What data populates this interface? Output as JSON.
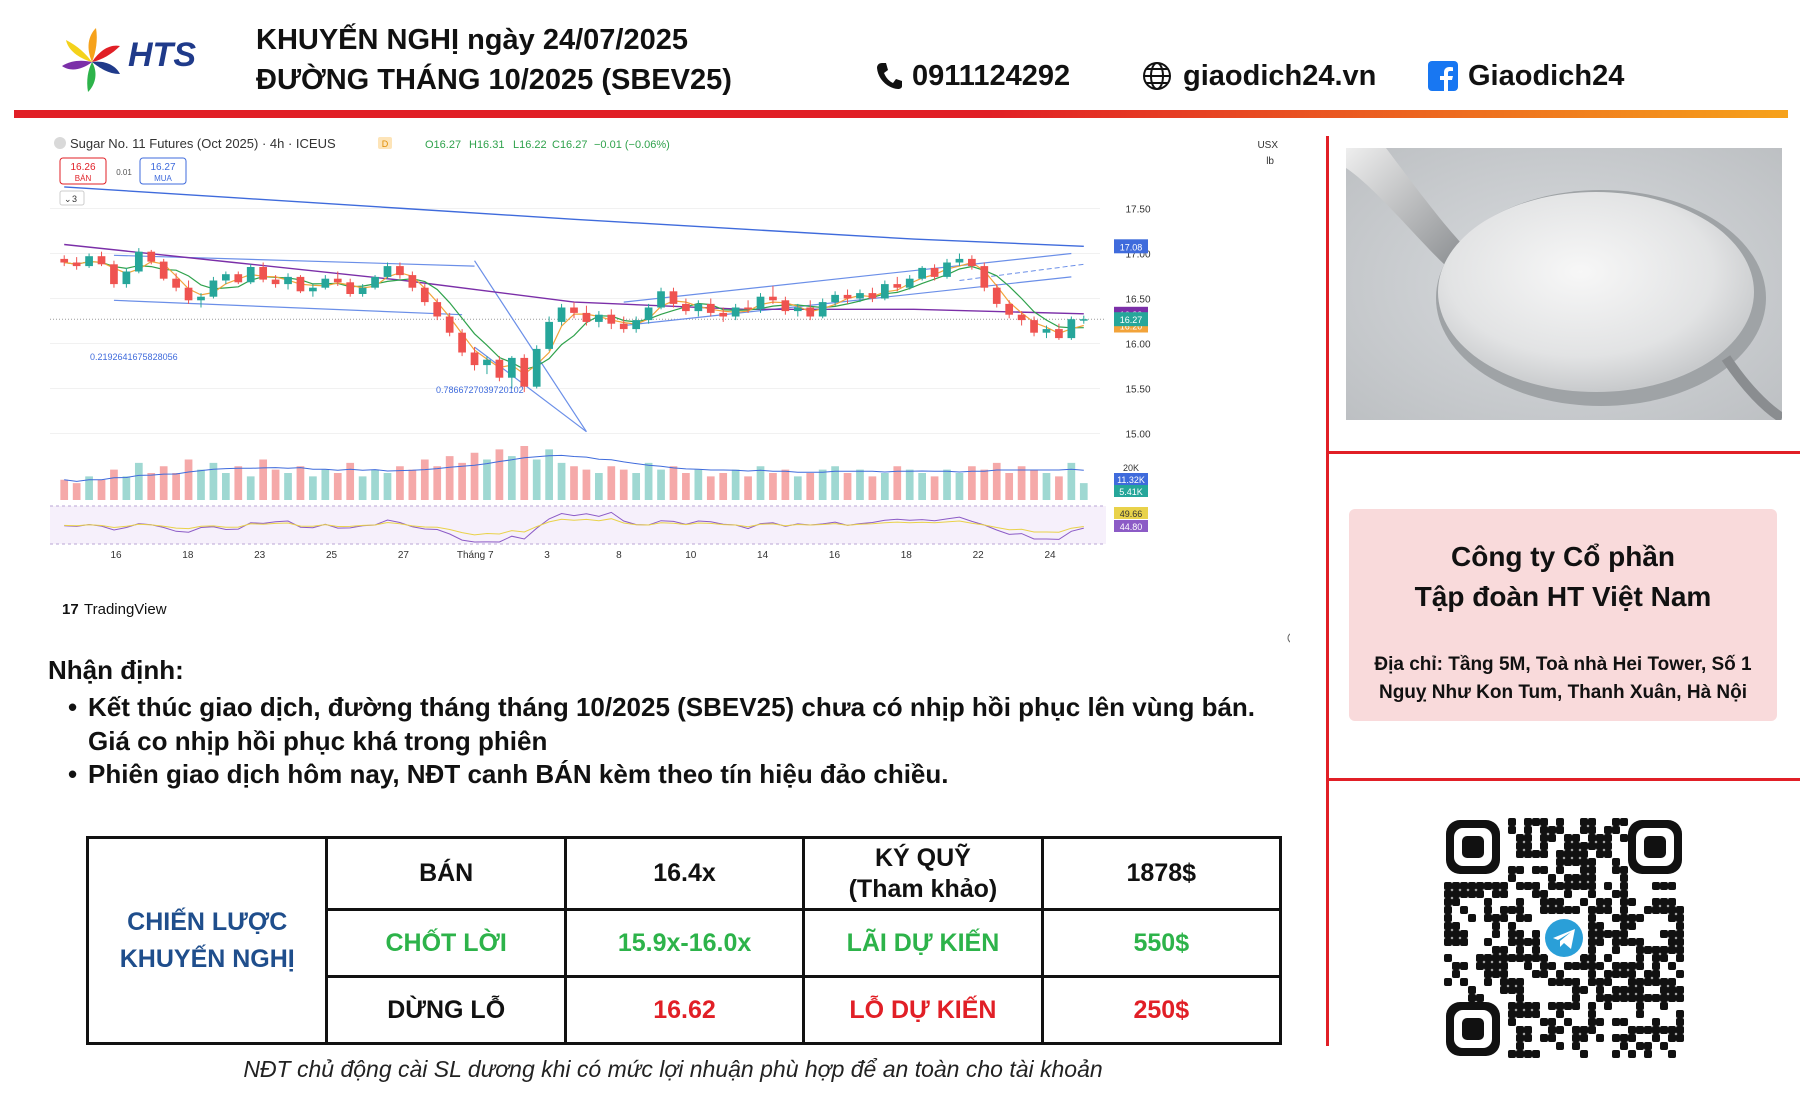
{
  "header": {
    "logo_text": "HTS",
    "title_line1": "KHUYẾN NGHỊ ngày 24/07/2025",
    "title_line2": "ĐƯỜNG THÁNG 10/2025 (SBEV25)",
    "phone": "0911124292",
    "website": "giaodich24.vn",
    "facebook": "Giaodich24",
    "colors": {
      "accent_red": "#e11f26",
      "accent_orange": "#f6a21b",
      "brand_blue": "#1f3a8a"
    }
  },
  "chart_data": {
    "type": "candlestick",
    "title": "Sugar No. 11 Futures (Oct 2025) · 4h · ICEUS",
    "ohlc_summary": {
      "open": "O16.27",
      "high": "H16.31",
      "low": "L16.22",
      "close": "C16.27",
      "change": "−0.01 (−0.06%)"
    },
    "sell_price": "16.26",
    "sell_label": "BÁN",
    "spread": "0.01",
    "buy_price": "16.27",
    "buy_label": "MUA",
    "indicator_count": "3",
    "currency": "USX",
    "unit": "lb",
    "d_badge": "D",
    "y_ticks": [
      "17.50",
      "17.00",
      "16.50",
      "16.00",
      "15.50",
      "15.00"
    ],
    "ylim": [
      14.95,
      17.95
    ],
    "x_ticks": [
      "16",
      "18",
      "23",
      "25",
      "27",
      "Tháng 7",
      "3",
      "8",
      "10",
      "14",
      "16",
      "18",
      "22",
      "24"
    ],
    "price_labels": {
      "ma_long": "17.08",
      "last": "16.27",
      "ma_mid": "16.33",
      "ma_short": "16.20"
    },
    "fib_label_1": "0.2192641675828056",
    "fib_label_2": "0.7866727039720102",
    "volume_labels": {
      "max": "20K",
      "ma": "11.32K",
      "last": "5.41K"
    },
    "rsi_labels": {
      "upper": "49.66",
      "lower": "44.80"
    },
    "watermark": "TradingView",
    "candles": [
      [
        16.94,
        16.98,
        16.86,
        16.9
      ],
      [
        16.9,
        16.96,
        16.82,
        16.86
      ],
      [
        16.86,
        17.0,
        16.84,
        16.97
      ],
      [
        16.97,
        17.02,
        16.86,
        16.88
      ],
      [
        16.88,
        16.92,
        16.62,
        16.66
      ],
      [
        16.66,
        16.84,
        16.62,
        16.8
      ],
      [
        16.8,
        17.06,
        16.78,
        17.02
      ],
      [
        17.02,
        17.04,
        16.88,
        16.91
      ],
      [
        16.91,
        16.94,
        16.7,
        16.72
      ],
      [
        16.72,
        16.78,
        16.58,
        16.62
      ],
      [
        16.62,
        16.7,
        16.44,
        16.48
      ],
      [
        16.48,
        16.56,
        16.4,
        16.52
      ],
      [
        16.52,
        16.74,
        16.5,
        16.7
      ],
      [
        16.7,
        16.8,
        16.66,
        16.77
      ],
      [
        16.77,
        16.8,
        16.66,
        16.68
      ],
      [
        16.68,
        16.88,
        16.66,
        16.85
      ],
      [
        16.85,
        16.9,
        16.68,
        16.71
      ],
      [
        16.71,
        16.76,
        16.62,
        16.66
      ],
      [
        16.66,
        16.78,
        16.6,
        16.74
      ],
      [
        16.74,
        16.76,
        16.56,
        16.58
      ],
      [
        16.58,
        16.66,
        16.52,
        16.62
      ],
      [
        16.62,
        16.76,
        16.6,
        16.72
      ],
      [
        16.72,
        16.8,
        16.64,
        16.68
      ],
      [
        16.68,
        16.72,
        16.52,
        16.55
      ],
      [
        16.55,
        16.66,
        16.52,
        16.62
      ],
      [
        16.62,
        16.76,
        16.6,
        16.74
      ],
      [
        16.74,
        16.9,
        16.72,
        16.86
      ],
      [
        16.86,
        16.9,
        16.72,
        16.76
      ],
      [
        16.76,
        16.8,
        16.58,
        16.62
      ],
      [
        16.62,
        16.66,
        16.42,
        16.46
      ],
      [
        16.46,
        16.5,
        16.26,
        16.3
      ],
      [
        16.3,
        16.34,
        16.08,
        16.12
      ],
      [
        16.12,
        16.16,
        15.86,
        15.9
      ],
      [
        15.9,
        15.96,
        15.7,
        15.76
      ],
      [
        15.76,
        15.86,
        15.66,
        15.82
      ],
      [
        15.82,
        15.86,
        15.58,
        15.62
      ],
      [
        15.62,
        15.86,
        15.5,
        15.84
      ],
      [
        15.84,
        15.88,
        15.46,
        15.52
      ],
      [
        15.52,
        15.98,
        15.5,
        15.94
      ],
      [
        15.94,
        16.3,
        15.92,
        16.24
      ],
      [
        16.24,
        16.44,
        16.2,
        16.4
      ],
      [
        16.4,
        16.46,
        16.28,
        16.34
      ],
      [
        16.34,
        16.42,
        16.2,
        16.24
      ],
      [
        16.24,
        16.36,
        16.18,
        16.32
      ],
      [
        16.32,
        16.38,
        16.16,
        16.22
      ],
      [
        16.22,
        16.3,
        16.12,
        16.16
      ],
      [
        16.16,
        16.3,
        16.12,
        16.26
      ],
      [
        16.26,
        16.44,
        16.22,
        16.4
      ],
      [
        16.4,
        16.62,
        16.38,
        16.58
      ],
      [
        16.58,
        16.62,
        16.4,
        16.44
      ],
      [
        16.44,
        16.5,
        16.32,
        16.36
      ],
      [
        16.36,
        16.48,
        16.3,
        16.44
      ],
      [
        16.44,
        16.5,
        16.3,
        16.34
      ],
      [
        16.34,
        16.4,
        16.24,
        16.3
      ],
      [
        16.3,
        16.44,
        16.26,
        16.4
      ],
      [
        16.4,
        16.48,
        16.34,
        16.38
      ],
      [
        16.38,
        16.56,
        16.34,
        16.52
      ],
      [
        16.52,
        16.64,
        16.44,
        16.48
      ],
      [
        16.48,
        16.52,
        16.32,
        16.36
      ],
      [
        16.36,
        16.44,
        16.3,
        16.4
      ],
      [
        16.4,
        16.48,
        16.26,
        16.3
      ],
      [
        16.3,
        16.5,
        16.28,
        16.46
      ],
      [
        16.46,
        16.58,
        16.42,
        16.54
      ],
      [
        16.54,
        16.6,
        16.44,
        16.5
      ],
      [
        16.5,
        16.6,
        16.46,
        16.56
      ],
      [
        16.56,
        16.62,
        16.46,
        16.5
      ],
      [
        16.5,
        16.7,
        16.48,
        16.66
      ],
      [
        16.66,
        16.74,
        16.58,
        16.62
      ],
      [
        16.62,
        16.76,
        16.6,
        16.72
      ],
      [
        16.72,
        16.86,
        16.7,
        16.84
      ],
      [
        16.84,
        16.88,
        16.7,
        16.74
      ],
      [
        16.74,
        16.94,
        16.72,
        16.9
      ],
      [
        16.9,
        17.0,
        16.86,
        16.94
      ],
      [
        16.94,
        16.98,
        16.82,
        16.86
      ],
      [
        16.86,
        16.9,
        16.58,
        16.62
      ],
      [
        16.62,
        16.66,
        16.4,
        16.44
      ],
      [
        16.44,
        16.48,
        16.28,
        16.32
      ],
      [
        16.32,
        16.36,
        16.2,
        16.26
      ],
      [
        16.26,
        16.3,
        16.08,
        16.12
      ],
      [
        16.12,
        16.2,
        16.06,
        16.16
      ],
      [
        16.16,
        16.22,
        16.04,
        16.06
      ],
      [
        16.06,
        16.3,
        16.04,
        16.27
      ],
      [
        16.27,
        16.31,
        16.22,
        16.27
      ]
    ],
    "volumes": [
      6,
      5,
      7,
      6,
      9,
      7,
      11,
      8,
      10,
      8,
      12,
      9,
      11,
      8,
      10,
      7,
      12,
      9,
      8,
      10,
      7,
      9,
      8,
      11,
      7,
      9,
      8,
      10,
      9,
      12,
      10,
      13,
      11,
      14,
      12,
      15,
      13,
      16,
      12,
      15,
      11,
      10,
      9,
      8,
      10,
      9,
      8,
      11,
      9,
      10,
      8,
      9,
      7,
      8,
      9,
      7,
      10,
      8,
      9,
      7,
      8,
      9,
      10,
      8,
      9,
      7,
      8,
      10,
      9,
      8,
      7,
      9,
      8,
      10,
      9,
      11,
      8,
      10,
      9,
      8,
      7,
      11,
      5
    ],
    "series": [
      {
        "name": "MA long",
        "color": "#3f6bdc",
        "values": [
          17.74,
          17.62,
          17.5,
          17.38,
          17.27,
          17.16,
          17.08
        ]
      },
      {
        "name": "MA mid",
        "color": "#7b2fa8",
        "values": [
          17.1,
          16.9,
          16.7,
          16.46,
          16.38,
          16.38,
          16.33
        ]
      },
      {
        "name": "MA short",
        "color": "#2fa24c"
      }
    ]
  },
  "right_panel": {
    "photo_alt": "sugar-spoon-photo",
    "company_name_line1": "Công ty Cổ phần",
    "company_name_line2": "Tập đoàn HT Việt Nam",
    "address_line1": "Địa chỉ: Tầng 5M, Toà nhà Hei Tower, Số 1",
    "address_line2": "Nguỵ Như Kon Tum, Thanh Xuân, Hà Nội",
    "qr_icon": "telegram-icon"
  },
  "analysis": {
    "heading": "Nhận định:",
    "bullet_char": "•",
    "bullet1_line1": "Kết thúc giao dịch, đường tháng tháng 10/2025 (SBEV25) chưa có nhịp hồi phục lên vùng bán.",
    "bullet1_line2": "Giá co nhịp hồi phục khá trong phiên",
    "bullet2": "Phiên giao dịch hôm nay, NĐT canh BÁN kèm theo tín hiệu đảo chiều."
  },
  "strategy_table": {
    "strategy_label_line1": "CHIẾN LƯỢC",
    "strategy_label_line2": "KHUYẾN NGHỊ",
    "action": "BÁN",
    "entry_price": "16.4x",
    "margin_label_line1": "KÝ QUỸ",
    "margin_label_line2": "(Tham khảo)",
    "margin_value": "1878$",
    "take_profit_label": "CHỐT LỜI",
    "take_profit_value": "15.9x-16.0x",
    "expected_profit_label": "LÃI DỰ KIẾN",
    "expected_profit_value": "550$",
    "stop_loss_label": "DỪNG LỖ",
    "stop_loss_value": "16.62",
    "expected_loss_label": "LỖ DỰ KIẾN",
    "expected_loss_value": "250$"
  },
  "footnote": "NĐT chủ động cài SL dương khi có mức lợi nhuận phù hợp để an toàn cho tài khoản"
}
